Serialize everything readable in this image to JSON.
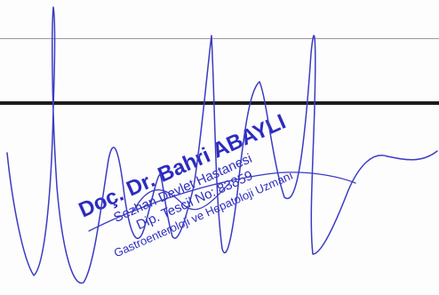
{
  "stamp": {
    "line1": "Doç. Dr. Bahri ABAYLI",
    "line2": "Sezhan Devlet Hastanesi",
    "line3": "Dip. Tescil No: 83859",
    "line4": "Gastroenteroloji ve Hepatoloji Uzmanı"
  },
  "colors": {
    "ink": "#3b3bc4",
    "stamp_ink": "#2c2cc0",
    "thin_rule": "#9a9a9a",
    "thick_rule": "#1c1c1c",
    "paper": "#fdfdfd"
  }
}
